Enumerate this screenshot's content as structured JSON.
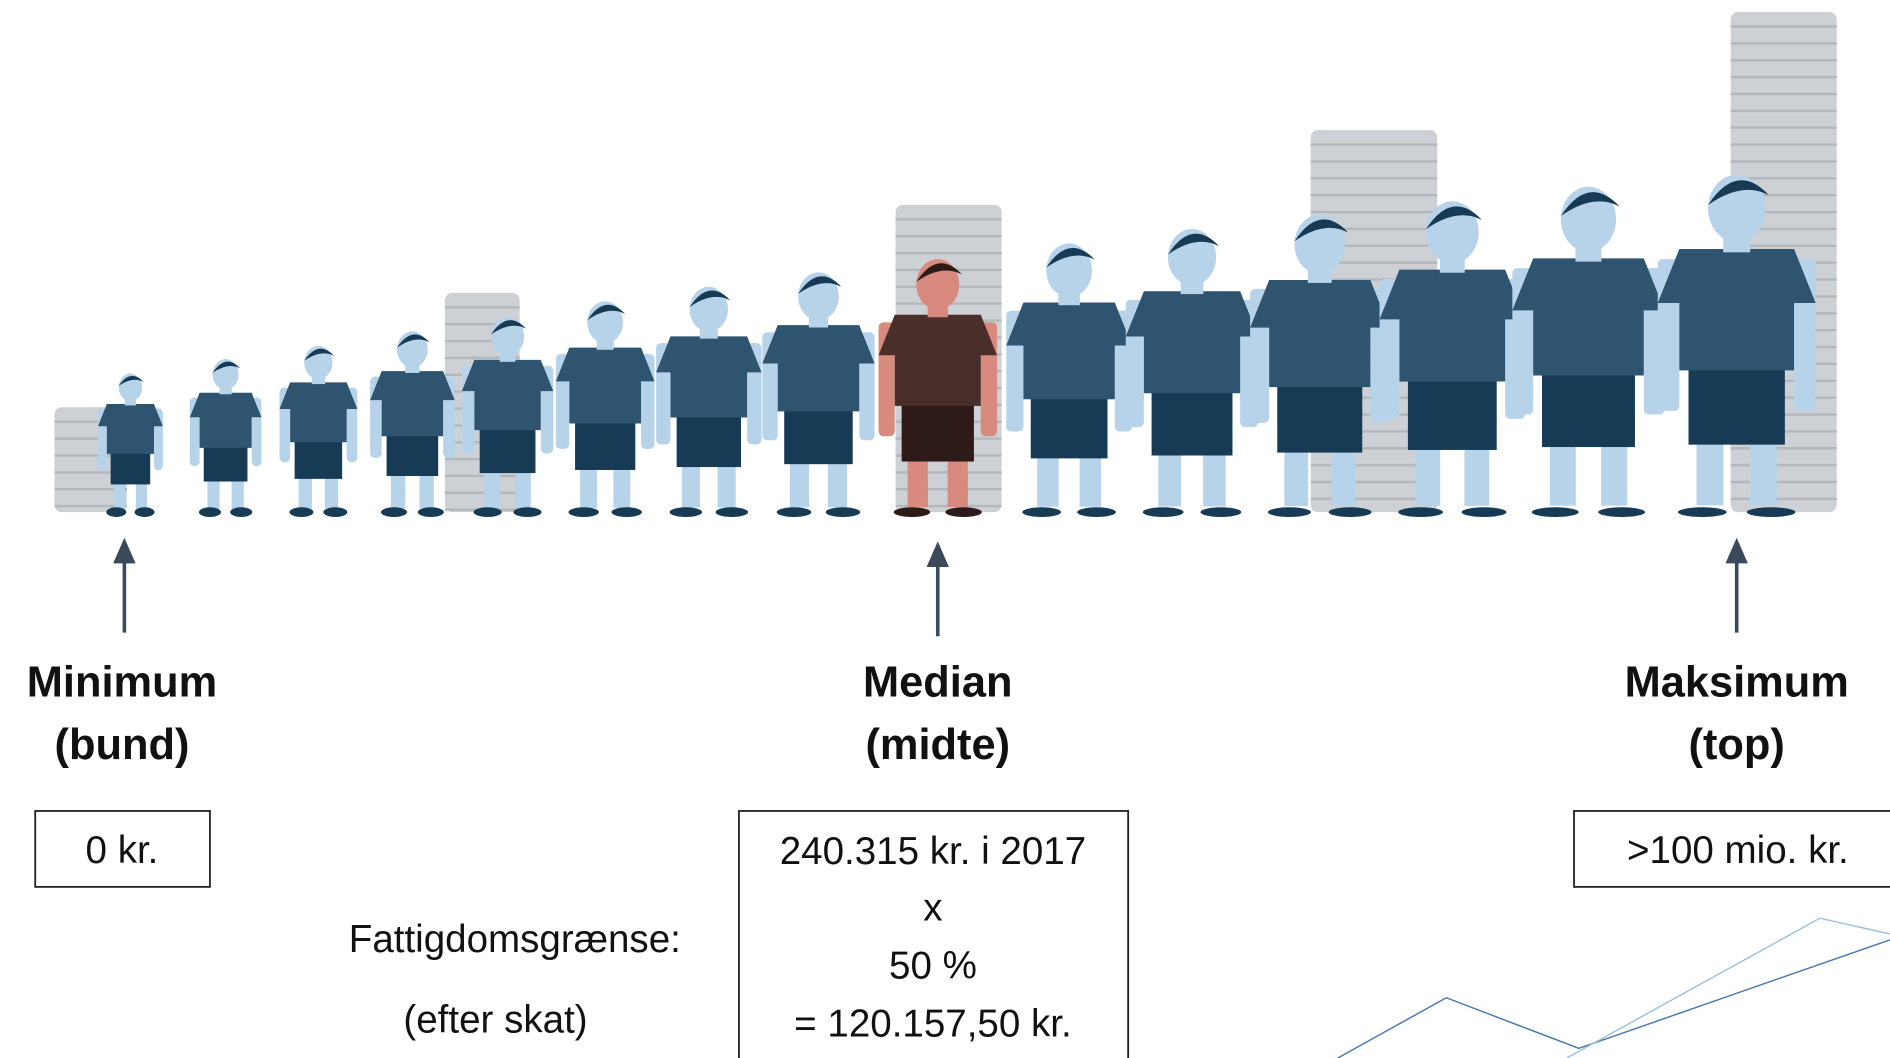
{
  "minimum": {
    "title": "Minimum",
    "subtitle": "(bund)",
    "value": "0 kr."
  },
  "median": {
    "title": "Median",
    "subtitle": "(midte)",
    "box": [
      "240.315 kr. i 2017",
      "x",
      "50 %",
      "= 120.157,50 kr."
    ]
  },
  "maximum": {
    "title": "Maksimum",
    "subtitle": "(top)",
    "value": ">100 mio. kr."
  },
  "poverty_line": {
    "label": "Fattigdomsgrænse:",
    "note": "(efter skat)"
  }
}
